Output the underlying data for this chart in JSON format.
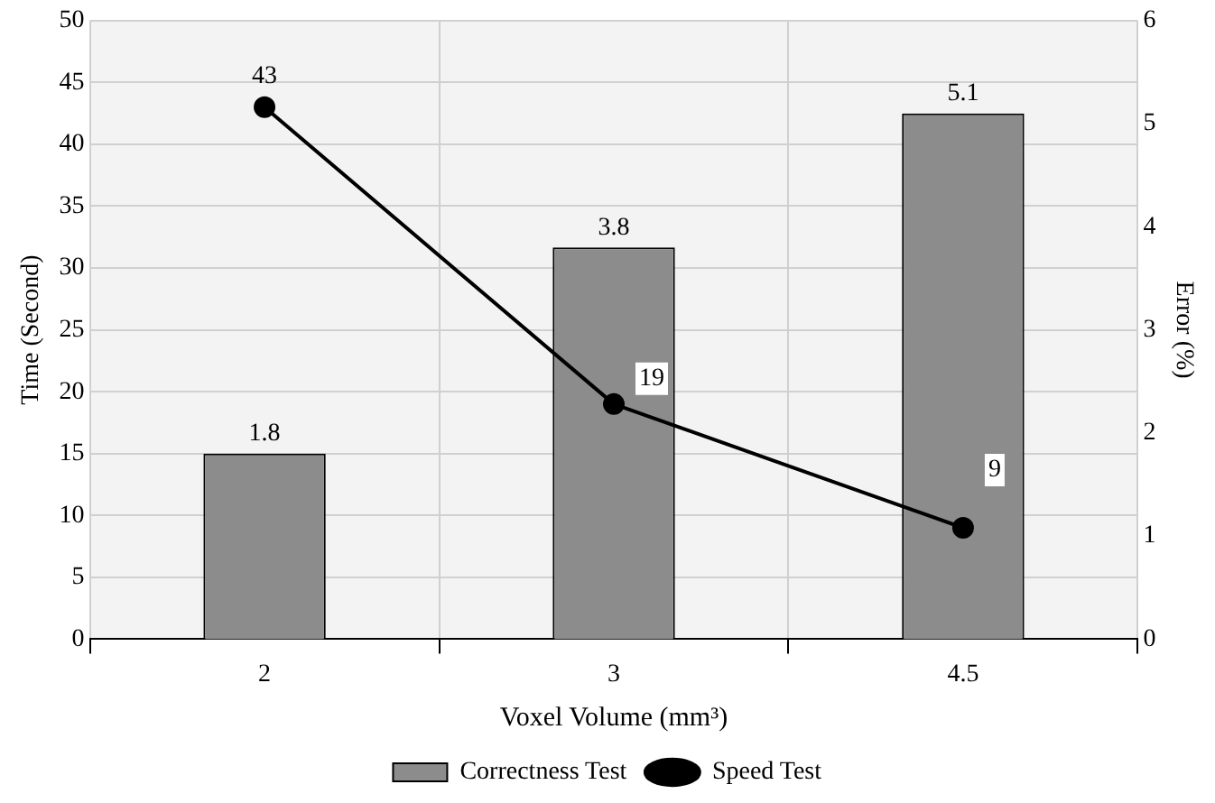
{
  "chart_data": {
    "type": "bar",
    "xlabel": "Voxel Volume (mm³)",
    "ylabel": "Time (Second)",
    "y2label": "Error (%)",
    "categories": [
      "2",
      "3",
      "4.5"
    ],
    "series": [
      {
        "name": "Correctness Test",
        "axis": "y2",
        "color": "#8c8c8c",
        "values": [
          1.8,
          3.8,
          5.1
        ]
      },
      {
        "name": "Speed Test",
        "type": "line",
        "axis": "y",
        "color": "#000000",
        "values": [
          43,
          19,
          9
        ],
        "marker": "circle",
        "line_style": "solid"
      }
    ],
    "ylim": [
      0,
      50
    ],
    "yticks": [
      0,
      5,
      10,
      15,
      20,
      25,
      30,
      35,
      40,
      45,
      50
    ],
    "y2lim": [
      0,
      6
    ],
    "y2ticks": [
      0,
      1,
      2,
      3,
      4,
      5,
      6
    ],
    "grid": true,
    "legend": "bottom",
    "data_labels": true
  }
}
